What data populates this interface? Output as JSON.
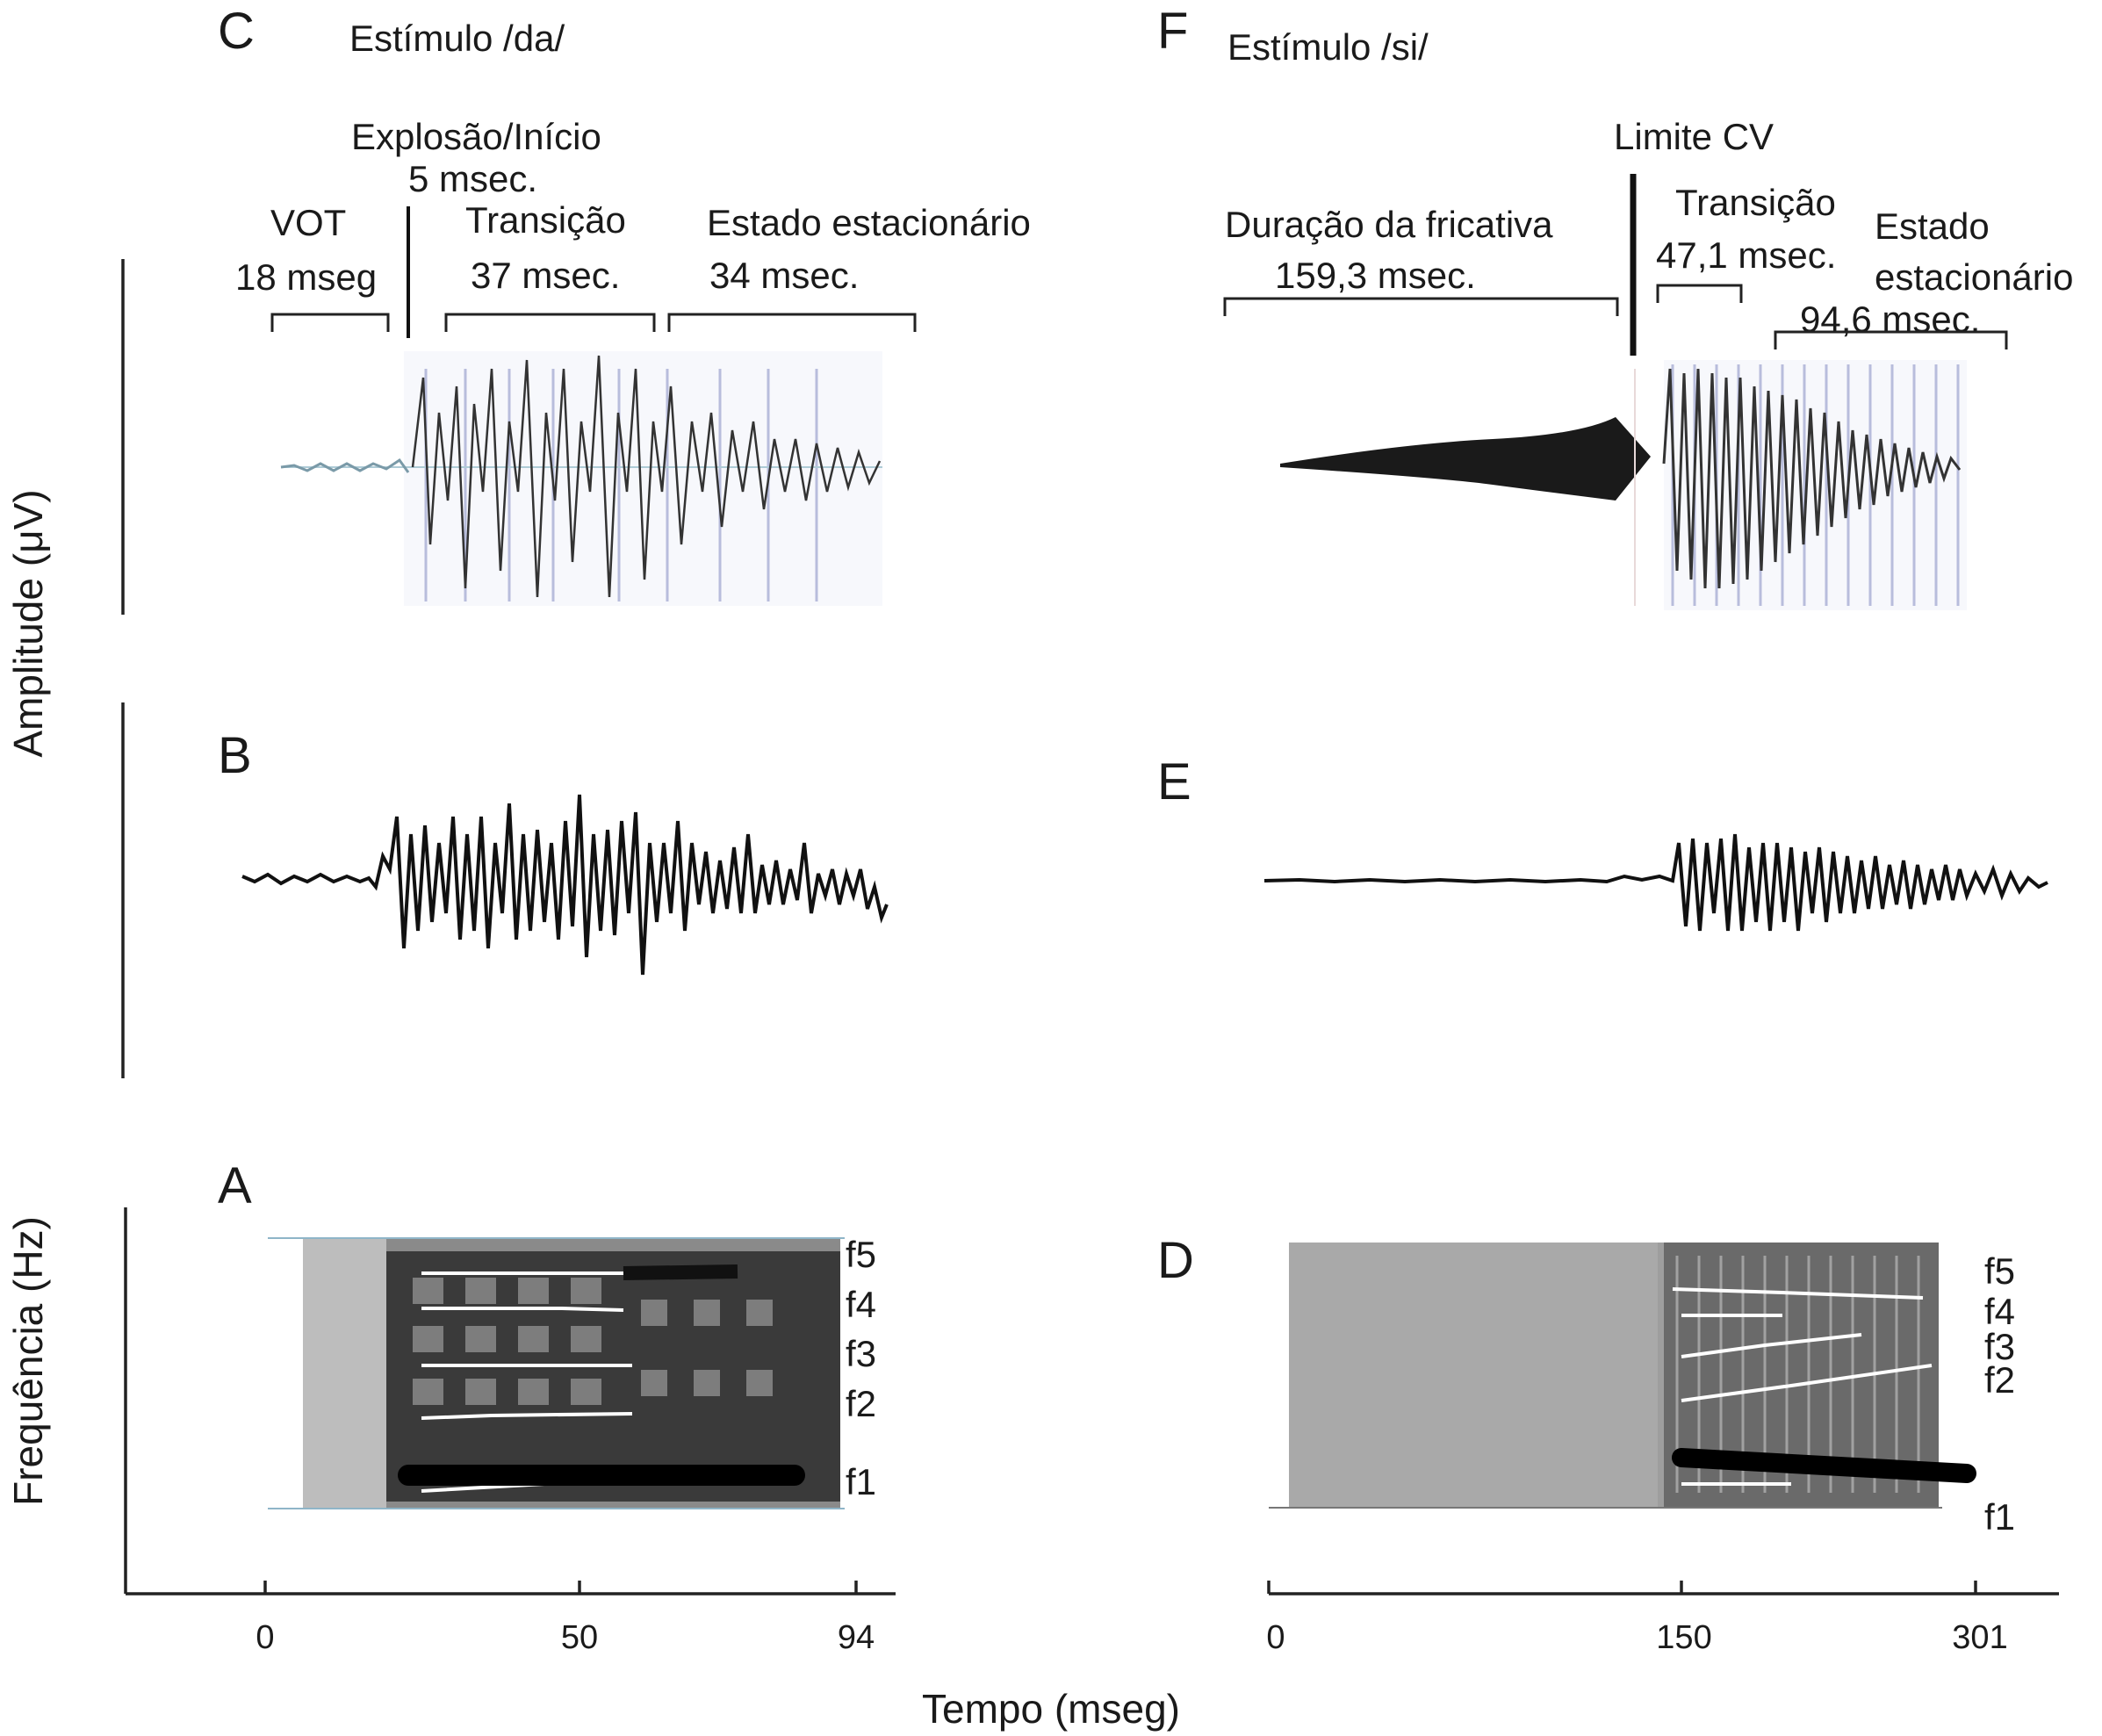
{
  "left": {
    "stimulus": "Estímulo /da/",
    "letters": {
      "top": "C",
      "mid": "B",
      "bottom": "A"
    },
    "segments": {
      "burst": "Explosão/Início",
      "burst_dur": "5 msec.",
      "vot": "VOT",
      "vot_dur": "18 mseg",
      "transition": "Transição",
      "transition_dur": "37 msec.",
      "steady": "Estado estacionário",
      "steady_dur": "34 msec."
    },
    "formants": [
      "f5",
      "f4",
      "f3",
      "f2",
      "f1"
    ],
    "time_ticks": [
      "0",
      "50",
      "94"
    ]
  },
  "right": {
    "stimulus": "Estímulo /si/",
    "letters": {
      "top": "F",
      "mid": "E",
      "bottom": "D"
    },
    "segments": {
      "boundary": "Limite CV",
      "fricative": "Duração da fricativa",
      "fricative_dur": "159,3 msec.",
      "transition": "Transição",
      "transition_dur": "47,1 msec.",
      "steady_1": "Estado",
      "steady_2": "estacionário",
      "steady_dur": "94,6 msec."
    },
    "formants": [
      "f5",
      "f4",
      "f3",
      "f2",
      "f1"
    ],
    "time_ticks": [
      "0",
      "150",
      "301"
    ]
  },
  "axes": {
    "amplitude": "Amplitude (μV)",
    "frequency": "Frequência (Hz)",
    "time": "Tempo (mseg)"
  }
}
